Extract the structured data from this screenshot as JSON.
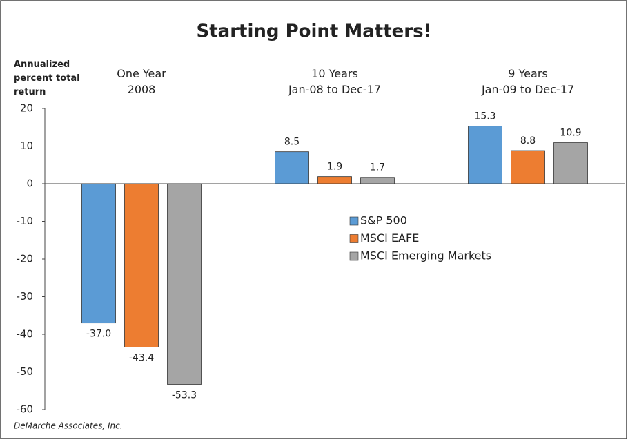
{
  "chart_data": {
    "type": "bar",
    "title": "Starting Point Matters!",
    "ylabel": "Annualized\npercent total\nreturn",
    "categories": [
      "One Year\n2008",
      "10 Years\nJan-08 to Dec-17",
      "9 Years\nJan-09 to Dec-17"
    ],
    "series": [
      {
        "name": "S&P 500",
        "color": "#5b9bd5",
        "values": [
          -37,
          8.5,
          15.3
        ],
        "value_labels": [
          "-37.0",
          "8.5",
          "15.3"
        ]
      },
      {
        "name": "MSCI EAFE",
        "color": "#ed7d31",
        "values": [
          -43.4,
          1.9,
          8.8
        ],
        "value_labels": [
          "-43.4",
          "1.9",
          "8.8"
        ]
      },
      {
        "name": "MSCI Emerging Markets",
        "color": "#a5a5a5",
        "values": [
          -53.3,
          1.7,
          10.9
        ],
        "value_labels": [
          "-53.3",
          "1.7",
          "10.9"
        ]
      }
    ],
    "ylim": [
      -60,
      20
    ],
    "yticks": [
      -60,
      -50,
      -40,
      -30,
      -20,
      -10,
      0,
      10,
      20
    ],
    "source": "DeMarche Associates, Inc."
  }
}
